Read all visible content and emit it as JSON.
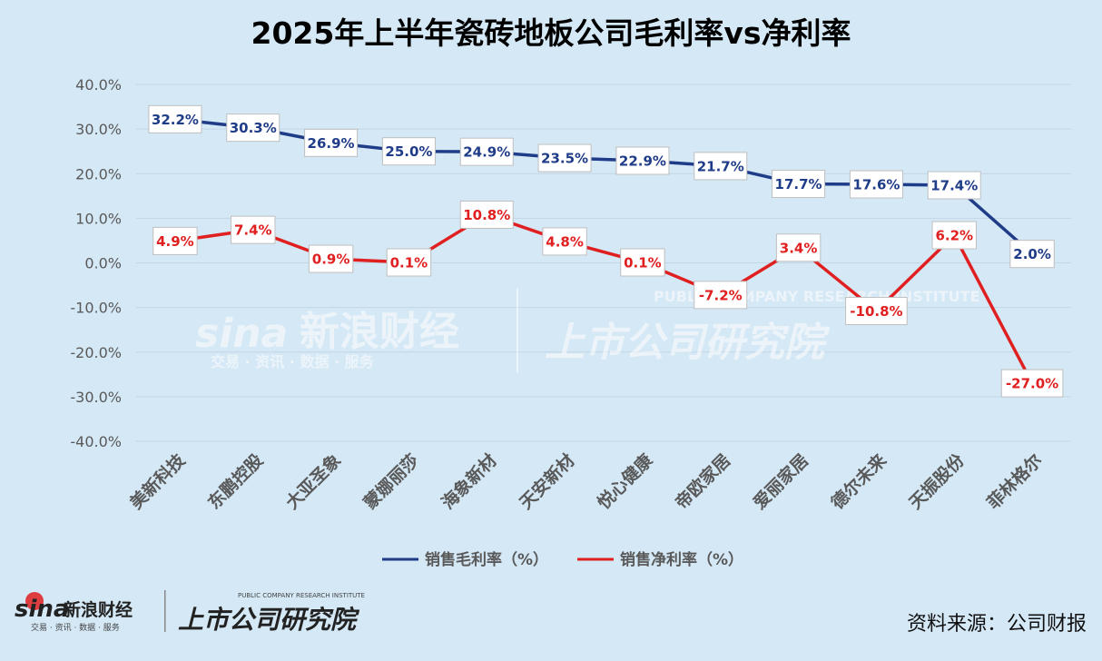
{
  "chart_data": {
    "type": "line",
    "title": "2025年上半年瓷砖地板公司毛利率vs净利率",
    "categories": [
      "美新科技",
      "东鹏控股",
      "大亚圣象",
      "蒙娜丽莎",
      "海象新材",
      "天安新材",
      "悦心健康",
      "帝欧家居",
      "爱丽家居",
      "德尔未来",
      "天振股份",
      "菲林格尔"
    ],
    "series": [
      {
        "name": "销售毛利率（%）",
        "color": "#1f3c88",
        "values": [
          32.2,
          30.3,
          26.9,
          25.0,
          24.9,
          23.5,
          22.9,
          21.7,
          17.7,
          17.6,
          17.4,
          2.0
        ],
        "labels": [
          "32.2%",
          "30.3%",
          "26.9%",
          "25.0%",
          "24.9%",
          "23.5%",
          "22.9%",
          "21.7%",
          "17.7%",
          "17.6%",
          "17.4%",
          "2.0%"
        ]
      },
      {
        "name": "销售净利率（%）",
        "color": "#e02020",
        "values": [
          4.9,
          7.4,
          0.9,
          0.1,
          10.8,
          4.8,
          0.1,
          -7.2,
          3.4,
          -10.8,
          6.2,
          -27.0
        ],
        "labels": [
          "4.9%",
          "7.4%",
          "0.9%",
          "0.1%",
          "10.8%",
          "4.8%",
          "0.1%",
          "-7.2%",
          "3.4%",
          "-10.8%",
          "6.2%",
          "-27.0%"
        ]
      }
    ],
    "ylim": [
      -40,
      40
    ],
    "yticks": [
      "40.0%",
      "30.0%",
      "20.0%",
      "10.0%",
      "0.0%",
      "-10.0%",
      "-20.0%",
      "-30.0%",
      "-40.0%"
    ],
    "ytick_values": [
      40,
      30,
      20,
      10,
      0,
      -10,
      -20,
      -30,
      -40
    ],
    "legend_position": "bottom"
  },
  "watermark": {
    "sina_logo": "sina",
    "sina_name": "新浪财经",
    "sina_sub": "交易 · 资讯 · 数据 · 服务",
    "institute": "上市公司研究院",
    "institute_en": "PUBLIC COMPANY RESEARCH INSTITUTE"
  },
  "footer": {
    "sina_logo": "sina",
    "sina_name": "新浪财经",
    "sina_sub": "交易 · 资讯 · 数据 · 服务",
    "institute": "上市公司研究院",
    "institute_en": "PUBLIC COMPANY RESEARCH INSTITUTE",
    "source": "资料来源：公司财报"
  }
}
